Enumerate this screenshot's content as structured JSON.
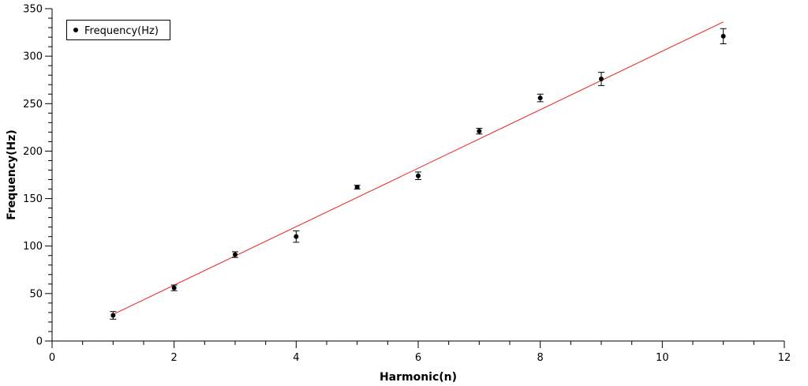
{
  "chart_data": {
    "type": "scatter",
    "xlabel": "Harmonic(n)",
    "ylabel": "Frequency(Hz)",
    "xlim": [
      0,
      12
    ],
    "ylim": [
      0,
      350
    ],
    "x_ticks": [
      0,
      2,
      4,
      6,
      8,
      10,
      12
    ],
    "y_ticks": [
      0,
      50,
      100,
      150,
      200,
      250,
      300,
      350
    ],
    "grid": false,
    "legend_position": "top-left",
    "series": [
      {
        "name": "Frequency(Hz)",
        "marker": "filled-circle",
        "color": "#000000",
        "x": [
          1,
          2,
          3,
          4,
          5,
          6,
          7,
          8,
          9,
          11
        ],
        "y": [
          27,
          56,
          91,
          110,
          162,
          174,
          221,
          256,
          276,
          321
        ],
        "error": [
          4,
          3,
          3,
          6,
          2,
          4,
          3,
          4,
          7,
          8
        ]
      }
    ],
    "fit_line": {
      "color": "#e8201f",
      "x": [
        1,
        11
      ],
      "y": [
        28,
        336
      ]
    }
  }
}
